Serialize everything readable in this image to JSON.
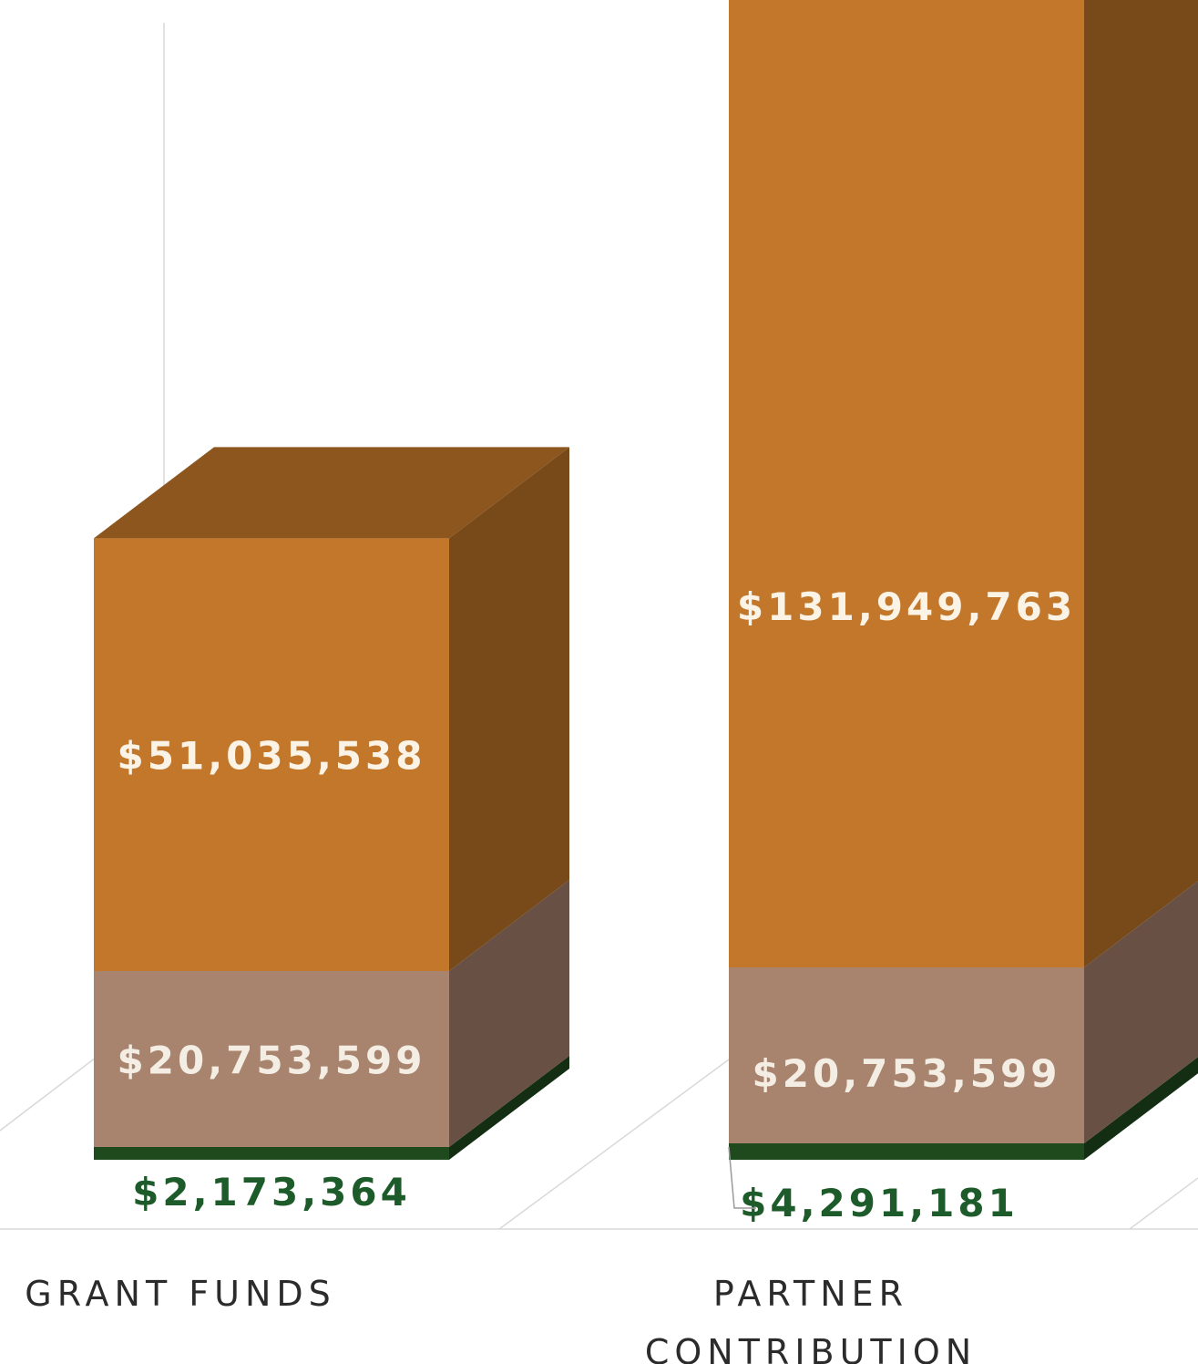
{
  "chart_data": {
    "type": "bar",
    "stacked": true,
    "three_d": true,
    "categories": [
      "GRANT FUNDS",
      "PARTNER CONTRIBUTION"
    ],
    "category_label_lines": [
      [
        "GRANT FUNDS"
      ],
      [
        "PARTNER",
        "CONTRIBUTION"
      ]
    ],
    "series": [
      {
        "key": "bottom",
        "values": [
          2173364,
          4291181
        ],
        "labels": [
          "$2,173,364",
          "$4,291,181"
        ],
        "color": "#1e4a1e",
        "label_color": "#1e5b2a"
      },
      {
        "key": "middle",
        "values": [
          20753599,
          20753599
        ],
        "labels": [
          "$20,753,599",
          "$20,753,599"
        ],
        "color": "#a8836d",
        "label_color": "#f3ede4"
      },
      {
        "key": "top",
        "values": [
          51035538,
          131949763
        ],
        "labels": [
          "$51,035,538",
          "$131,949,763"
        ],
        "color": "#c2772a",
        "label_color": "#fbf3e6"
      }
    ],
    "grid": true,
    "legend": "none"
  }
}
